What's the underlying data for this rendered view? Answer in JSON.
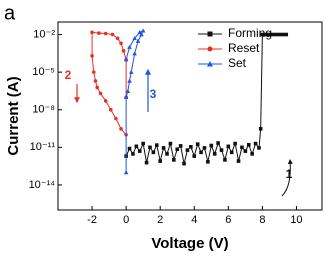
{
  "chart_data": {
    "type": "line",
    "panel_label": "a",
    "x_label": "Voltage (V)",
    "y_label": "Current (A)",
    "log_y": true,
    "legend": "upper right",
    "xlim": [
      -4,
      11.5
    ],
    "ylim": [
      1e-16,
      0.1
    ],
    "xticks": [
      -2,
      0,
      2,
      4,
      6,
      8,
      10
    ],
    "yticks": [
      {
        "value": 1e-14,
        "label": "10⁻¹⁴"
      },
      {
        "value": 1e-11,
        "label": "10⁻¹¹"
      },
      {
        "value": 1e-08,
        "label": "10⁻⁸"
      },
      {
        "value": 1e-05,
        "label": "10⁻⁵"
      },
      {
        "value": 0.01,
        "label": "10⁻²"
      }
    ],
    "series": [
      {
        "name": "Forming",
        "color": "#111111",
        "marker": "square",
        "x": [
          0,
          0.2,
          0.4,
          0.6,
          0.8,
          1,
          1.2,
          1.4,
          1.6,
          1.8,
          2,
          2.2,
          2.4,
          2.6,
          2.8,
          3,
          3.2,
          3.4,
          3.6,
          3.8,
          4,
          4.2,
          4.4,
          4.6,
          4.8,
          5,
          5.2,
          5.4,
          5.6,
          5.8,
          6,
          6.2,
          6.4,
          6.6,
          6.8,
          7,
          7.2,
          7.4,
          7.6,
          7.8,
          7.9,
          8,
          8.2,
          8.4,
          8.6,
          8.8,
          9,
          9.2,
          9.4
        ],
        "values": [
          2e-12,
          8e-12,
          3e-12,
          1.2e-11,
          5e-12,
          2e-11,
          6e-13,
          1e-11,
          4e-12,
          1.5e-11,
          8e-13,
          9e-12,
          3e-12,
          2e-11,
          1e-12,
          7e-12,
          1.3e-11,
          5e-13,
          6e-12,
          1.1e-11,
          2e-12,
          1.8e-11,
          4e-12,
          9e-12,
          7e-13,
          1.4e-11,
          3e-12,
          2.2e-11,
          6e-12,
          1e-12,
          1.2e-11,
          4e-12,
          2e-11,
          8e-13,
          1e-11,
          5e-12,
          1.6e-11,
          3e-12,
          2e-11,
          9e-12,
          3e-10,
          0.01,
          0.01,
          0.01,
          0.01,
          0.01,
          0.01,
          0.01,
          0.01
        ]
      },
      {
        "name": "Reset",
        "color": "#e8302a",
        "marker": "circle",
        "x": [
          0,
          -0.3,
          -0.6,
          -0.9,
          -1.2,
          -1.5,
          -1.7,
          -1.8,
          -1.9,
          -2,
          -2,
          -1.6,
          -1.2,
          -0.8,
          -0.5,
          -0.3,
          -0.15,
          0,
          0
        ],
        "values": [
          1e-10,
          3e-10,
          2e-09,
          1e-08,
          5e-08,
          2e-07,
          6e-07,
          2e-06,
          1e-05,
          0.0002,
          0.015,
          0.013,
          0.012,
          0.01,
          0.005,
          0.002,
          0.0005,
          0.0001,
          1e-07
        ]
      },
      {
        "name": "Set",
        "color": "#2255dd",
        "marker": "triangle",
        "x": [
          0,
          0,
          0.1,
          0.2,
          0.3,
          0.5,
          0.7,
          0.9,
          1,
          0.8,
          0.5,
          0.2,
          0
        ],
        "values": [
          1e-13,
          1e-07,
          3e-07,
          2e-06,
          1e-05,
          0.0003,
          0.003,
          0.01,
          0.02,
          0.015,
          0.005,
          0.001,
          0.0001
        ]
      }
    ],
    "annotations": [
      {
        "text": "1",
        "color": "#111111"
      },
      {
        "text": "2",
        "color": "#e8302a"
      },
      {
        "text": "3",
        "color": "#2255dd"
      }
    ]
  }
}
